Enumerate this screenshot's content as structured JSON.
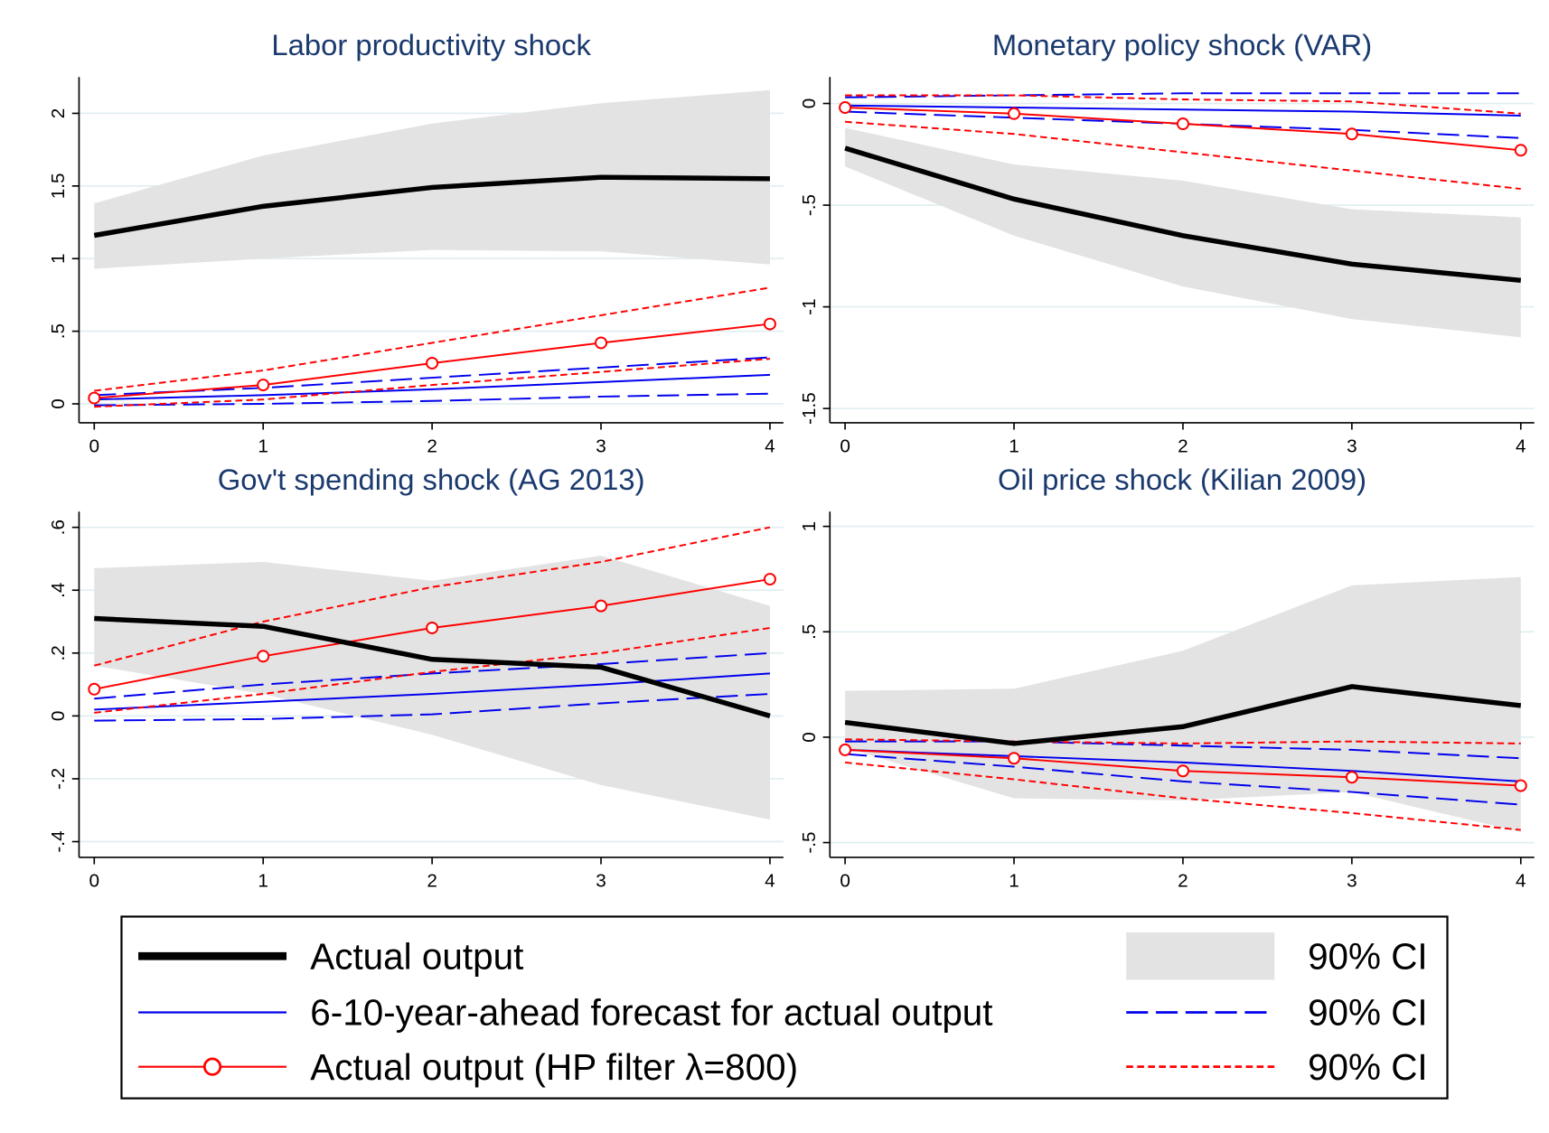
{
  "chart_data": [
    {
      "type": "line",
      "title": "Labor productivity shock",
      "x": [
        0,
        1,
        2,
        3,
        4
      ],
      "xlim": [
        -0.09,
        4.08
      ],
      "xticks": [
        0,
        1,
        2,
        3,
        4
      ],
      "ylim": [
        -0.13,
        2.25
      ],
      "yticks": [
        0,
        {
          "value": 0.5,
          "label": ".5"
        },
        1,
        1.5,
        2
      ],
      "grid": true,
      "series": [
        {
          "name": "Actual output",
          "color": "#000000",
          "style": "thick",
          "values": [
            1.16,
            1.36,
            1.49,
            1.56,
            1.55
          ]
        },
        {
          "name": "90% CI",
          "color": "#e3e3e3",
          "style": "band",
          "lower": [
            0.93,
            1.0,
            1.06,
            1.05,
            0.96
          ],
          "upper": [
            1.38,
            1.71,
            1.93,
            2.07,
            2.16
          ]
        },
        {
          "name": "6-10-year-ahead forecast for actual output",
          "color": "#0000ee",
          "style": "solid",
          "values": [
            0.03,
            0.06,
            0.1,
            0.15,
            0.2
          ]
        },
        {
          "name": "90% CI",
          "color": "#0000ee",
          "style": "long-dash",
          "lower": [
            -0.01,
            0.0,
            0.02,
            0.05,
            0.07
          ],
          "upper": [
            0.06,
            0.11,
            0.18,
            0.25,
            0.32
          ]
        },
        {
          "name": "Actual output (HP filter λ=800)",
          "color": "#ff0000",
          "style": "markers",
          "values": [
            0.04,
            0.13,
            0.28,
            0.42,
            0.55
          ]
        },
        {
          "name": "90% CI",
          "color": "#ff0000",
          "style": "short-dash",
          "lower": [
            -0.02,
            0.03,
            0.13,
            0.22,
            0.31
          ],
          "upper": [
            0.09,
            0.23,
            0.42,
            0.61,
            0.8
          ]
        }
      ]
    },
    {
      "type": "line",
      "title": "Monetary policy shock (VAR)",
      "x": [
        0,
        1,
        2,
        3,
        4
      ],
      "xlim": [
        -0.09,
        4.08
      ],
      "xticks": [
        0,
        1,
        2,
        3,
        4
      ],
      "ylim": [
        -1.57,
        0.13
      ],
      "yticks": [
        {
          "value": -1.5,
          "label": "-1.5"
        },
        {
          "value": -1,
          "label": "-1"
        },
        {
          "value": -0.5,
          "label": "-.5"
        },
        0
      ],
      "grid": true,
      "series": [
        {
          "color": "#000000",
          "style": "thick",
          "values": [
            -0.22,
            -0.47,
            -0.65,
            -0.79,
            -0.87
          ]
        },
        {
          "color": "#e3e3e3",
          "style": "band",
          "lower": [
            -0.31,
            -0.65,
            -0.9,
            -1.06,
            -1.15
          ],
          "upper": [
            -0.12,
            -0.3,
            -0.38,
            -0.52,
            -0.56
          ]
        },
        {
          "color": "#0000ee",
          "style": "solid",
          "values": [
            -0.01,
            -0.02,
            -0.03,
            -0.04,
            -0.06
          ]
        },
        {
          "color": "#0000ee",
          "style": "long-dash",
          "lower": [
            -0.04,
            -0.07,
            -0.1,
            -0.13,
            -0.17
          ],
          "upper": [
            0.03,
            0.04,
            0.05,
            0.05,
            0.05
          ]
        },
        {
          "color": "#ff0000",
          "style": "markers",
          "values": [
            -0.02,
            -0.05,
            -0.1,
            -0.15,
            -0.23
          ]
        },
        {
          "color": "#ff0000",
          "style": "short-dash",
          "lower": [
            -0.09,
            -0.15,
            -0.24,
            -0.33,
            -0.42
          ],
          "upper": [
            0.04,
            0.04,
            0.02,
            0.01,
            -0.05
          ]
        }
      ]
    },
    {
      "type": "line",
      "title": "Gov't spending shock (AG 2013)",
      "x": [
        0,
        1,
        2,
        3,
        4
      ],
      "xlim": [
        -0.09,
        4.08
      ],
      "xticks": [
        0,
        1,
        2,
        3,
        4
      ],
      "ylim": [
        -0.45,
        0.65
      ],
      "yticks": [
        {
          "value": -0.4,
          "label": "-.4"
        },
        {
          "value": -0.2,
          "label": "-.2"
        },
        0,
        {
          "value": 0.2,
          "label": ".2"
        },
        {
          "value": 0.4,
          "label": ".4"
        },
        {
          "value": 0.6,
          "label": ".6"
        }
      ],
      "grid": true,
      "series": [
        {
          "color": "#000000",
          "style": "thick",
          "values": [
            0.31,
            0.285,
            0.18,
            0.155,
            0.0
          ]
        },
        {
          "color": "#e3e3e3",
          "style": "band",
          "lower": [
            0.16,
            0.07,
            -0.06,
            -0.22,
            -0.33
          ],
          "upper": [
            0.47,
            0.49,
            0.43,
            0.51,
            0.35
          ]
        },
        {
          "color": "#0000ee",
          "style": "solid",
          "values": [
            0.02,
            0.045,
            0.07,
            0.1,
            0.135
          ]
        },
        {
          "color": "#0000ee",
          "style": "long-dash",
          "lower": [
            -0.015,
            -0.01,
            0.005,
            0.04,
            0.07
          ],
          "upper": [
            0.055,
            0.1,
            0.135,
            0.165,
            0.2
          ]
        },
        {
          "color": "#ff0000",
          "style": "markers",
          "values": [
            0.085,
            0.19,
            0.28,
            0.35,
            0.435
          ]
        },
        {
          "color": "#ff0000",
          "style": "short-dash",
          "lower": [
            0.01,
            0.07,
            0.14,
            0.2,
            0.28
          ],
          "upper": [
            0.16,
            0.3,
            0.41,
            0.49,
            0.6
          ]
        }
      ]
    },
    {
      "type": "line",
      "title": "Oil price shock (Kilian 2009)",
      "x": [
        0,
        1,
        2,
        3,
        4
      ],
      "xlim": [
        -0.09,
        4.08
      ],
      "xticks": [
        0,
        1,
        2,
        3,
        4
      ],
      "ylim": [
        -0.57,
        1.07
      ],
      "yticks": [
        {
          "value": -0.5,
          "label": "-.5"
        },
        0,
        {
          "value": 0.5,
          "label": ".5"
        },
        1
      ],
      "grid": true,
      "series": [
        {
          "color": "#000000",
          "style": "thick",
          "values": [
            0.07,
            -0.03,
            0.05,
            0.24,
            0.15
          ]
        },
        {
          "color": "#e3e3e3",
          "style": "band",
          "lower": [
            -0.05,
            -0.29,
            -0.3,
            -0.26,
            -0.45
          ],
          "upper": [
            0.22,
            0.23,
            0.41,
            0.72,
            0.76
          ]
        },
        {
          "color": "#0000ee",
          "style": "solid",
          "values": [
            -0.06,
            -0.09,
            -0.12,
            -0.16,
            -0.21
          ]
        },
        {
          "color": "#0000ee",
          "style": "long-dash",
          "lower": [
            -0.08,
            -0.14,
            -0.21,
            -0.26,
            -0.32
          ],
          "upper": [
            -0.02,
            -0.02,
            -0.04,
            -0.06,
            -0.1
          ]
        },
        {
          "color": "#ff0000",
          "style": "markers",
          "values": [
            -0.06,
            -0.1,
            -0.16,
            -0.19,
            -0.23
          ]
        },
        {
          "color": "#ff0000",
          "style": "short-dash",
          "lower": [
            -0.12,
            -0.2,
            -0.29,
            -0.36,
            -0.44
          ],
          "upper": [
            -0.01,
            -0.02,
            -0.03,
            -0.02,
            -0.03
          ]
        }
      ]
    }
  ]
}
